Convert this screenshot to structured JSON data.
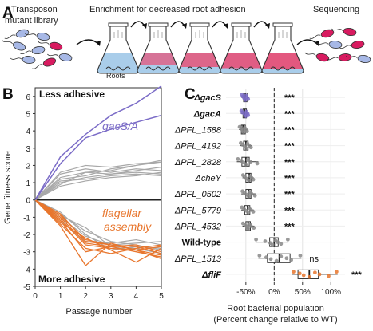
{
  "panel_a": {
    "letter": "A",
    "left_label_1": "Transposon",
    "left_label_2": "mutant library",
    "middle_label": "Enrichment for decreased root adhesion",
    "right_label": "Sequencing",
    "roots_label": "Roots",
    "colors": {
      "blue_cell": "#a7b8e6",
      "red_cell": "#d81b60",
      "flask_blue": "#a9cdea",
      "flask_pink": "#e4557c"
    }
  },
  "chart_data": [
    {
      "type": "line",
      "panel": "B",
      "xlabel": "Passage number",
      "ylabel": "Gene fitness score",
      "x": [
        0,
        1,
        2,
        3,
        4,
        5
      ],
      "xlim": [
        0,
        5
      ],
      "ylim": [
        -5,
        6.5
      ],
      "yticks": [
        -5,
        -4,
        -3,
        -2,
        -1,
        0,
        1,
        2,
        3,
        4,
        5,
        6
      ],
      "xticks": [
        0,
        1,
        2,
        3,
        4,
        5
      ],
      "annotations": {
        "top": "Less adhesive",
        "bottom": "More adhesive",
        "purple_group": "gacS/A",
        "orange_group_1": "flagellar",
        "orange_group_2": "assembly"
      },
      "colors": {
        "purple": "#7b6cc7",
        "orange": "#e8762d",
        "grey": "#a8a8a8"
      },
      "series_purple": [
        [
          0,
          2.5,
          3.8,
          4.9,
          5.6,
          6.6
        ],
        [
          0,
          2.1,
          3.6,
          4.1,
          4.5,
          4.9
        ]
      ],
      "series_grey_up": [
        [
          0,
          1.3,
          1.6,
          1.7,
          2.0,
          2.2
        ],
        [
          0,
          1.0,
          1.3,
          1.5,
          1.7,
          1.9
        ],
        [
          0,
          1.5,
          1.8,
          1.6,
          1.8,
          1.7
        ],
        [
          0,
          0.8,
          1.1,
          1.3,
          1.4,
          1.6
        ],
        [
          0,
          1.2,
          1.4,
          1.8,
          2.0,
          2.3
        ],
        [
          0,
          0.9,
          1.6,
          1.5,
          1.6,
          1.5
        ],
        [
          0,
          1.6,
          2.0,
          1.9,
          2.1,
          2.2
        ],
        [
          0,
          1.1,
          1.2,
          1.4,
          1.5,
          1.4
        ]
      ],
      "series_grey_down": [
        [
          0,
          -0.8,
          -1.8,
          -2.4,
          -2.6,
          -2.9
        ],
        [
          0,
          -1.0,
          -2.1,
          -2.6,
          -2.5,
          -2.4
        ],
        [
          0,
          -0.9,
          -1.6,
          -2.7,
          -2.8,
          -3.1
        ],
        [
          0,
          -1.2,
          -2.4,
          -2.5,
          -2.3,
          -2.6
        ],
        [
          0,
          -0.7,
          -2.0,
          -2.9,
          -2.7,
          -2.8
        ]
      ],
      "series_orange": [
        [
          0,
          -1.1,
          -2.6,
          -2.8,
          -2.9,
          -3.2
        ],
        [
          0,
          -1.5,
          -3.8,
          -2.5,
          -2.9,
          -2.7
        ],
        [
          0,
          -0.9,
          -2.3,
          -2.6,
          -2.7,
          -3.1
        ],
        [
          0,
          -1.3,
          -2.2,
          -2.9,
          -3.6,
          -2.8
        ],
        [
          0,
          -1.0,
          -2.5,
          -2.7,
          -2.6,
          -3.0
        ],
        [
          0,
          -1.4,
          -2.8,
          -3.1,
          -2.8,
          -2.6
        ],
        [
          0,
          -1.2,
          -3.0,
          -2.7,
          -3.0,
          -3.3
        ],
        [
          0,
          -0.8,
          -2.4,
          -2.6,
          -2.9,
          -3.4
        ]
      ]
    },
    {
      "type": "box",
      "panel": "C",
      "xlabel_1": "Root bacterial population",
      "xlabel_2": "(Percent change relative to WT)",
      "xlim": [
        -85,
        125
      ],
      "xticks": [
        -50,
        0,
        50,
        100
      ],
      "xtick_labels": [
        "-50%",
        "0%",
        "50%",
        "100%"
      ],
      "categories": [
        {
          "label": "ΔgacS",
          "bold": true,
          "italic": true,
          "color": "#7b6cc7",
          "stats": [
            -58,
            -54,
            -51,
            -48,
            -44
          ],
          "points": [
            -57,
            -55,
            -53,
            -51,
            -50,
            -48,
            -46
          ],
          "sig": "***"
        },
        {
          "label": "ΔgacA",
          "bold": true,
          "italic": true,
          "color": "#7b6cc7",
          "stats": [
            -59,
            -55,
            -52,
            -49,
            -45
          ],
          "points": [
            -58,
            -56,
            -52,
            -50,
            -49,
            -47,
            -46
          ],
          "sig": "***"
        },
        {
          "label": "ΔPFL_1588",
          "bold": false,
          "italic": true,
          "color": "#888888",
          "stats": [
            -62,
            -58,
            -55,
            -51,
            -47
          ],
          "points": [
            -61,
            -58,
            -56,
            -54,
            -52,
            -50,
            -48
          ],
          "sig": "***"
        },
        {
          "label": "ΔPFL_4192",
          "bold": false,
          "italic": true,
          "color": "#888888",
          "stats": [
            -60,
            -54,
            -50,
            -46,
            -40
          ],
          "points": [
            -59,
            -56,
            -52,
            -49,
            -47,
            -44,
            -41
          ],
          "sig": "***"
        },
        {
          "label": "ΔPFL_2828",
          "bold": false,
          "italic": true,
          "color": "#888888",
          "stats": [
            -66,
            -57,
            -50,
            -44,
            -28
          ],
          "points": [
            -64,
            -58,
            -54,
            -50,
            -47,
            -42,
            -30
          ],
          "sig": "***"
        },
        {
          "label": "ΔcheY",
          "bold": false,
          "italic": true,
          "color": "#888888",
          "stats": [
            -56,
            -50,
            -44,
            -41,
            -36
          ],
          "points": [
            -55,
            -52,
            -49,
            -45,
            -42,
            -40,
            -37
          ],
          "sig": "***"
        },
        {
          "label": "ΔPFL_0502",
          "bold": false,
          "italic": true,
          "color": "#888888",
          "stats": [
            -58,
            -50,
            -45,
            -41,
            -33
          ],
          "points": [
            -56,
            -52,
            -47,
            -45,
            -43,
            -40,
            -34
          ],
          "sig": "***"
        },
        {
          "label": "ΔPFL_5779",
          "bold": false,
          "italic": true,
          "color": "#888888",
          "stats": [
            -58,
            -52,
            -47,
            -43,
            -36
          ],
          "points": [
            -57,
            -53,
            -49,
            -46,
            -44,
            -41,
            -37
          ],
          "sig": "***"
        },
        {
          "label": "ΔPFL_4532",
          "bold": false,
          "italic": true,
          "color": "#888888",
          "stats": [
            -56,
            -50,
            -46,
            -42,
            -35
          ],
          "points": [
            -55,
            -51,
            -48,
            -46,
            -43,
            -41,
            -36
          ],
          "sig": "***"
        },
        {
          "label": "Wild-type",
          "bold": true,
          "italic": false,
          "color": "#888888",
          "stats": [
            -33,
            -8,
            0,
            7,
            25
          ],
          "points": [
            -32,
            -16,
            -7,
            -3,
            2,
            6,
            12,
            24
          ],
          "sig": ""
        },
        {
          "label": "ΔPFL_1513",
          "bold": false,
          "italic": true,
          "color": "#888888",
          "stats": [
            -28,
            -12,
            9,
            28,
            48
          ],
          "points": [
            -26,
            -14,
            -6,
            4,
            12,
            22,
            30,
            46
          ],
          "sig": "ns"
        },
        {
          "label": "ΔfliF",
          "bold": true,
          "italic": true,
          "color": "#e8762d",
          "stats": [
            32,
            42,
            62,
            78,
            112
          ],
          "points": [
            34,
            45,
            52,
            62,
            72,
            80,
            96,
            110
          ],
          "sig": "***"
        }
      ]
    }
  ],
  "panel_b_letter": "B",
  "panel_c_letter": "C"
}
